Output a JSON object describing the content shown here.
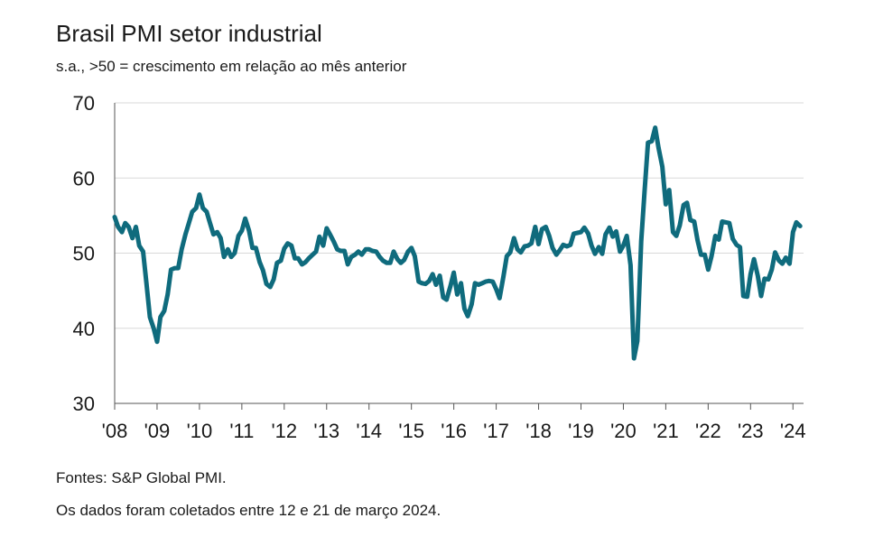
{
  "chart_data": {
    "type": "line",
    "title": "Brasil PMI setor industrial",
    "subtitle": "s.a., >50 = crescimento em relação ao mês anterior",
    "ylim": [
      30,
      70
    ],
    "yticks": [
      30,
      40,
      50,
      60,
      70
    ],
    "xlim": [
      2008,
      2024.25
    ],
    "xticks": [
      "'08",
      "'09",
      "'10",
      "'11",
      "'12",
      "'13",
      "'14",
      "'15",
      "'16",
      "'17",
      "'18",
      "'19",
      "'20",
      "'21",
      "'22",
      "'23",
      "'24"
    ],
    "grid": "horizontal",
    "line_color": "#0f6b7d",
    "series": [
      {
        "x": [
          2008.0,
          2008.08,
          2008.17,
          2008.25,
          2008.33,
          2008.42,
          2008.5,
          2008.58,
          2008.67,
          2008.75,
          2008.83,
          2008.92,
          2009.0,
          2009.08,
          2009.17,
          2009.25,
          2009.33,
          2009.42,
          2009.5,
          2009.58,
          2009.67,
          2009.75,
          2009.83,
          2009.92,
          2010.0,
          2010.08,
          2010.17,
          2010.25,
          2010.33,
          2010.42,
          2010.5,
          2010.58,
          2010.67,
          2010.75,
          2010.83,
          2010.92,
          2011.0,
          2011.08,
          2011.17,
          2011.25,
          2011.33,
          2011.42,
          2011.5,
          2011.58,
          2011.67,
          2011.75,
          2011.83,
          2011.92,
          2012.0,
          2012.08,
          2012.17,
          2012.25,
          2012.33,
          2012.42,
          2012.5,
          2012.58,
          2012.67,
          2012.75,
          2012.83,
          2012.92,
          2013.0,
          2013.08,
          2013.17,
          2013.25,
          2013.33,
          2013.42,
          2013.5,
          2013.58,
          2013.67,
          2013.75,
          2013.83,
          2013.92,
          2014.0,
          2014.08,
          2014.17,
          2014.25,
          2014.33,
          2014.42,
          2014.5,
          2014.58,
          2014.67,
          2014.75,
          2014.83,
          2014.92,
          2015.0,
          2015.08,
          2015.17,
          2015.25,
          2015.33,
          2015.42,
          2015.5,
          2015.58,
          2015.67,
          2015.75,
          2015.83,
          2015.92,
          2016.0,
          2016.08,
          2016.17,
          2016.25,
          2016.33,
          2016.42,
          2016.5,
          2016.58,
          2016.67,
          2016.75,
          2016.83,
          2016.92,
          2017.0,
          2017.08,
          2017.17,
          2017.25,
          2017.33,
          2017.42,
          2017.5,
          2017.58,
          2017.67,
          2017.75,
          2017.83,
          2017.92,
          2018.0,
          2018.08,
          2018.17,
          2018.25,
          2018.33,
          2018.42,
          2018.5,
          2018.58,
          2018.67,
          2018.75,
          2018.83,
          2018.92,
          2019.0,
          2019.08,
          2019.17,
          2019.25,
          2019.33,
          2019.42,
          2019.5,
          2019.58,
          2019.67,
          2019.75,
          2019.83,
          2019.92,
          2020.0,
          2020.08,
          2020.17,
          2020.25,
          2020.33,
          2020.42,
          2020.5,
          2020.58,
          2020.67,
          2020.75,
          2020.83,
          2020.92,
          2021.0,
          2021.08,
          2021.17,
          2021.25,
          2021.33,
          2021.42,
          2021.5,
          2021.58,
          2021.67,
          2021.75,
          2021.83,
          2021.92,
          2022.0,
          2022.08,
          2022.17,
          2022.25,
          2022.33,
          2022.42,
          2022.5,
          2022.58,
          2022.67,
          2022.75,
          2022.83,
          2022.92,
          2023.0,
          2023.08,
          2023.17,
          2023.25,
          2023.33,
          2023.42,
          2023.5,
          2023.58,
          2023.67,
          2023.75,
          2023.83,
          2023.92,
          2024.0,
          2024.08,
          2024.17
        ],
        "y": [
          54.8,
          53.5,
          52.8,
          54.0,
          53.5,
          52.0,
          53.5,
          51.0,
          50.2,
          46.0,
          41.5,
          40.0,
          38.2,
          41.5,
          42.3,
          44.5,
          47.8,
          48.0,
          48.0,
          50.5,
          52.5,
          54.0,
          55.5,
          56.0,
          57.8,
          56.0,
          55.5,
          54.0,
          52.5,
          52.8,
          52.0,
          49.5,
          50.5,
          49.5,
          50.0,
          52.3,
          53.0,
          54.6,
          53.0,
          50.7,
          50.7,
          48.8,
          47.7,
          45.9,
          45.5,
          46.5,
          48.7,
          49.0,
          50.6,
          51.3,
          51.0,
          49.3,
          49.3,
          48.5,
          48.8,
          49.3,
          49.8,
          50.2,
          52.2,
          51.0,
          53.3,
          52.5,
          51.5,
          50.5,
          50.3,
          50.3,
          48.5,
          49.5,
          49.8,
          50.2,
          49.8,
          50.5,
          50.5,
          50.3,
          50.2,
          49.5,
          49.0,
          48.7,
          48.7,
          50.2,
          49.2,
          48.7,
          49.1,
          50.2,
          50.7,
          49.6,
          46.2,
          46.0,
          45.9,
          46.3,
          47.2,
          45.8,
          47.0,
          44.1,
          43.8,
          45.6,
          47.4,
          44.5,
          46.0,
          42.6,
          41.6,
          43.2,
          46.0,
          45.8,
          46.0,
          46.2,
          46.3,
          46.2,
          45.2,
          44.0,
          46.9,
          49.6,
          50.1,
          52.0,
          50.5,
          50.1,
          50.9,
          51.0,
          51.3,
          53.5,
          51.2,
          53.2,
          53.5,
          52.3,
          50.7,
          49.8,
          50.4,
          51.1,
          50.9,
          51.1,
          52.6,
          52.7,
          52.8,
          53.4,
          52.6,
          51.0,
          49.9,
          50.8,
          49.9,
          52.5,
          53.4,
          52.2,
          52.9,
          50.2,
          51.0,
          52.3,
          48.4,
          36.0,
          38.3,
          51.6,
          58.2,
          64.7,
          64.9,
          66.7,
          64.0,
          61.5,
          56.5,
          58.4,
          52.8,
          52.3,
          53.7,
          56.4,
          56.7,
          54.4,
          54.2,
          51.7,
          49.8,
          49.8,
          47.8,
          49.6,
          52.3,
          51.8,
          54.2,
          54.1,
          54.0,
          51.9,
          51.1,
          50.8,
          44.3,
          44.2,
          47.2,
          49.2,
          47.0,
          44.3,
          46.6,
          46.5,
          47.8,
          50.1,
          49.0,
          48.6,
          49.4,
          48.6,
          52.8,
          54.1,
          53.6
        ]
      }
    ],
    "source": "Fontes: S&P Global PMI.",
    "note": "Os dados foram coletados entre 12 e 21 de março 2024."
  }
}
